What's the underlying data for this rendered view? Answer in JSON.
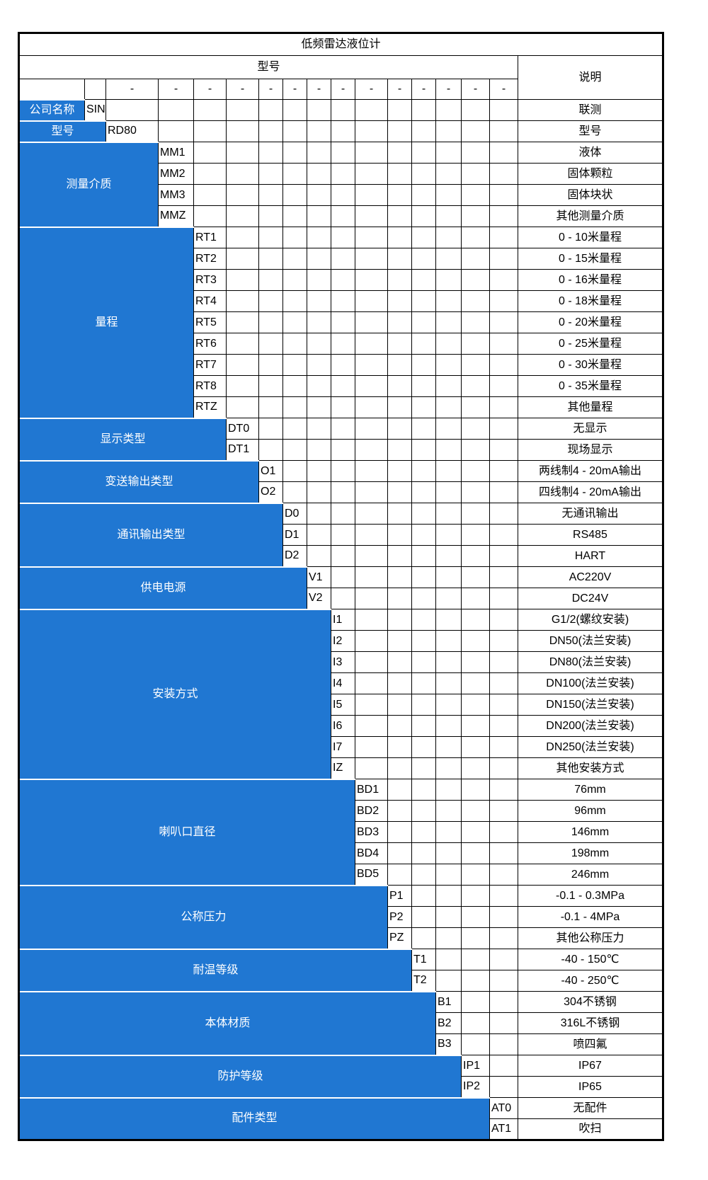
{
  "title": "低频雷达液位计",
  "header": {
    "model_label": "型号",
    "desc_label": "说明",
    "dash": "-"
  },
  "colors": {
    "category_bg": "#2077D2",
    "category_text": "#FFFFFF",
    "grid_border": "#000000",
    "cell_bg": "#FFFFFF"
  },
  "groups": [
    {
      "category": "公司名称",
      "col": 1,
      "rows": [
        {
          "code": "SIN",
          "desc": "联测"
        }
      ]
    },
    {
      "category": "型号",
      "col": 2,
      "rows": [
        {
          "code": "RD80",
          "desc": "型号"
        }
      ]
    },
    {
      "category": "测量介质",
      "col": 3,
      "rows": [
        {
          "code": "MM1",
          "desc": "液体"
        },
        {
          "code": "MM2",
          "desc": "固体颗粒"
        },
        {
          "code": "MM3",
          "desc": "固体块状"
        },
        {
          "code": "MMZ",
          "desc": "其他测量介质"
        }
      ]
    },
    {
      "category": "量程",
      "col": 4,
      "rows": [
        {
          "code": "RT1",
          "desc": "0 - 10米量程"
        },
        {
          "code": "RT2",
          "desc": "0 - 15米量程"
        },
        {
          "code": "RT3",
          "desc": "0 - 16米量程"
        },
        {
          "code": "RT4",
          "desc": "0 - 18米量程"
        },
        {
          "code": "RT5",
          "desc": "0 - 20米量程"
        },
        {
          "code": "RT6",
          "desc": "0 - 25米量程"
        },
        {
          "code": "RT7",
          "desc": "0 - 30米量程"
        },
        {
          "code": "RT8",
          "desc": "0 - 35米量程"
        },
        {
          "code": "RTZ",
          "desc": "其他量程"
        }
      ]
    },
    {
      "category": "显示类型",
      "col": 5,
      "rows": [
        {
          "code": "DT0",
          "desc": "无显示"
        },
        {
          "code": "DT1",
          "desc": "现场显示"
        }
      ]
    },
    {
      "category": "变送输出类型",
      "col": 6,
      "rows": [
        {
          "code": "O1",
          "desc": "两线制4 - 20mA输出"
        },
        {
          "code": "O2",
          "desc": "四线制4 - 20mA输出"
        }
      ]
    },
    {
      "category": "通讯输出类型",
      "col": 7,
      "rows": [
        {
          "code": "D0",
          "desc": "无通讯输出"
        },
        {
          "code": "D1",
          "desc": "RS485"
        },
        {
          "code": "D2",
          "desc": "HART"
        }
      ]
    },
    {
      "category": "供电电源",
      "col": 8,
      "rows": [
        {
          "code": "V1",
          "desc": "AC220V"
        },
        {
          "code": "V2",
          "desc": "DC24V"
        }
      ]
    },
    {
      "category": "安装方式",
      "col": 9,
      "rows": [
        {
          "code": "I1",
          "desc": "G1/2(螺纹安装)"
        },
        {
          "code": "I2",
          "desc": "DN50(法兰安装)"
        },
        {
          "code": "I3",
          "desc": "DN80(法兰安装)"
        },
        {
          "code": "I4",
          "desc": "DN100(法兰安装)"
        },
        {
          "code": "I5",
          "desc": "DN150(法兰安装)"
        },
        {
          "code": "I6",
          "desc": "DN200(法兰安装)"
        },
        {
          "code": "I7",
          "desc": "DN250(法兰安装)"
        },
        {
          "code": "IZ",
          "desc": "其他安装方式"
        }
      ]
    },
    {
      "category": "喇叭口直径",
      "col": 10,
      "rows": [
        {
          "code": "BD1",
          "desc": "76mm"
        },
        {
          "code": "BD2",
          "desc": "96mm"
        },
        {
          "code": "BD3",
          "desc": "146mm"
        },
        {
          "code": "BD4",
          "desc": "198mm"
        },
        {
          "code": "BD5",
          "desc": "246mm"
        }
      ]
    },
    {
      "category": "公称压力",
      "col": 11,
      "rows": [
        {
          "code": "P1",
          "desc": "-0.1 - 0.3MPa"
        },
        {
          "code": "P2",
          "desc": "-0.1 - 4MPa"
        },
        {
          "code": "PZ",
          "desc": "其他公称压力"
        }
      ]
    },
    {
      "category": "耐温等级",
      "col": 12,
      "rows": [
        {
          "code": "T1",
          "desc": "-40 - 150℃"
        },
        {
          "code": "T2",
          "desc": "-40 - 250℃"
        }
      ]
    },
    {
      "category": "本体材质",
      "col": 13,
      "rows": [
        {
          "code": "B1",
          "desc": "304不锈钢"
        },
        {
          "code": "B2",
          "desc": "316L不锈钢"
        },
        {
          "code": "B3",
          "desc": "喷四氟"
        }
      ]
    },
    {
      "category": "防护等级",
      "col": 14,
      "rows": [
        {
          "code": "IP1",
          "desc": "IP67"
        },
        {
          "code": "IP2",
          "desc": "IP65"
        }
      ]
    },
    {
      "category": "配件类型",
      "col": 15,
      "rows": [
        {
          "code": "AT0",
          "desc": "无配件"
        },
        {
          "code": "AT1",
          "desc": "吹扫"
        }
      ]
    }
  ]
}
